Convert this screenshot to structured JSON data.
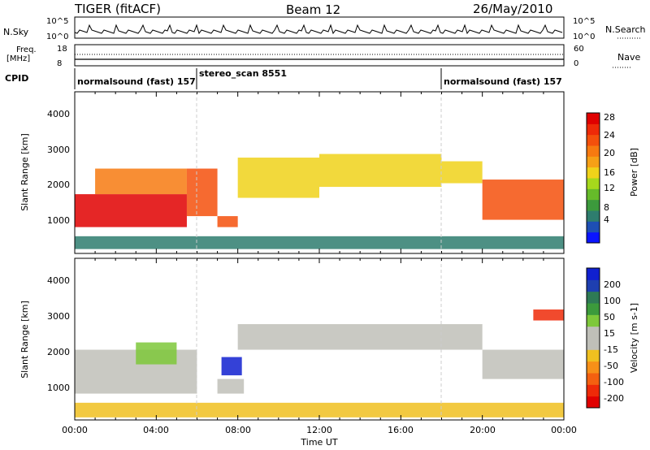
{
  "header": {
    "station": "TIGER (fitACF)",
    "beam": "Beam 12",
    "date": "26/May/2010"
  },
  "noise_panel": {
    "left_label": "N.Sky",
    "right_label": "N.Search",
    "left_ticks": [
      "10^5",
      "10^0"
    ],
    "right_ticks": [
      "10^5",
      "10^0"
    ]
  },
  "freq_panel": {
    "left_label_top": "Freq.",
    "left_label_bottom": "[MHz]",
    "left_ticks": [
      "18",
      "8"
    ],
    "right_label": "Nave",
    "right_ticks": [
      "60",
      "0"
    ]
  },
  "cpid_panel": {
    "label": "CPID",
    "segments": [
      {
        "name": "normalsound (fast) 157",
        "start_hour": 0,
        "end_hour": 6
      },
      {
        "name": "stereo_scan 8551",
        "start_hour": 6,
        "end_hour": 18
      },
      {
        "name": "normalsound (fast) 157",
        "start_hour": 18,
        "end_hour": 24
      }
    ]
  },
  "power_panel": {
    "ylabel": "Slant Range [km]",
    "yticks": [
      "1000",
      "2000",
      "3000",
      "4000"
    ],
    "colorbar_label": "Power [dB]",
    "colorbar_ticks": [
      "4",
      "8",
      "12",
      "16",
      "20",
      "24",
      "28"
    ],
    "colorbar_colors": [
      "#0a14ff",
      "#1e4fb4",
      "#2e7d6e",
      "#3c9a3c",
      "#66bb2a",
      "#a6d81c",
      "#f0d21a",
      "#f6a016",
      "#f77a10",
      "#f4500c",
      "#ee2a08",
      "#e00000"
    ]
  },
  "velocity_panel": {
    "ylabel": "Slant Range [km]",
    "yticks": [
      "1000",
      "2000",
      "3000",
      "4000"
    ],
    "colorbar_label": "Velocity [m s-1]",
    "colorbar_ticks": [
      "200",
      "100",
      "50",
      "15",
      "-15",
      "-50",
      "-100",
      "-200"
    ],
    "colorbar_colors": [
      "#1020d0",
      "#1e3fb0",
      "#2e7a55",
      "#3c9a3c",
      "#7ec83a",
      "#bfbfb8",
      "#bfbfb8",
      "#f0c020",
      "#f79018",
      "#f46010",
      "#ee2a08",
      "#e00000"
    ]
  },
  "x_axis": {
    "label": "Time UT",
    "ticks": [
      "00:00",
      "04:00",
      "08:00",
      "12:00",
      "16:00",
      "20:00",
      "00:00"
    ]
  },
  "chart_data": [
    {
      "type": "heatmap",
      "title": "Power",
      "x": {
        "label": "Time UT",
        "range_hours": [
          0,
          24
        ]
      },
      "y": {
        "label": "Slant Range [km]",
        "range_km": [
          180,
          4600
        ]
      },
      "z": {
        "label": "Power [dB]",
        "range": [
          0,
          32
        ]
      },
      "scatter_regions": [
        {
          "start_hour": 0.0,
          "end_hour": 5.5,
          "lower_km": 900,
          "upper_km": 1800,
          "power_db": 30
        },
        {
          "start_hour": 1.0,
          "end_hour": 5.5,
          "lower_km": 1800,
          "upper_km": 2500,
          "power_db": 22
        },
        {
          "start_hour": 5.5,
          "end_hour": 7.0,
          "lower_km": 1200,
          "upper_km": 2500,
          "power_db": 26
        },
        {
          "start_hour": 7.0,
          "end_hour": 8.0,
          "lower_km": 900,
          "upper_km": 1200,
          "power_db": 26
        },
        {
          "start_hour": 8.0,
          "end_hour": 12.0,
          "lower_km": 1700,
          "upper_km": 2800,
          "power_db": 18
        },
        {
          "start_hour": 12.0,
          "end_hour": 18.0,
          "lower_km": 2000,
          "upper_km": 2900,
          "power_db": 18
        },
        {
          "start_hour": 18.0,
          "end_hour": 20.0,
          "lower_km": 2100,
          "upper_km": 2700,
          "power_db": 18
        },
        {
          "start_hour": 20.0,
          "end_hour": 24.0,
          "lower_km": 1100,
          "upper_km": 2200,
          "power_db": 26
        },
        {
          "start_hour": 0.0,
          "end_hour": 24.0,
          "lower_km": 300,
          "upper_km": 650,
          "power_db": 6
        }
      ]
    },
    {
      "type": "heatmap",
      "title": "Velocity",
      "x": {
        "label": "Time UT",
        "range_hours": [
          0,
          24
        ]
      },
      "y": {
        "label": "Slant Range [km]",
        "range_km": [
          180,
          4600
        ]
      },
      "z": {
        "label": "Velocity [m s-1]",
        "range": [
          -250,
          250
        ]
      },
      "scatter_regions": [
        {
          "start_hour": 0.0,
          "end_hour": 6.0,
          "lower_km": 900,
          "upper_km": 2100,
          "velocity": 0
        },
        {
          "start_hour": 3.0,
          "end_hour": 5.0,
          "lower_km": 1700,
          "upper_km": 2300,
          "velocity": 80
        },
        {
          "start_hour": 7.2,
          "end_hour": 8.2,
          "lower_km": 1400,
          "upper_km": 1900,
          "velocity": 250
        },
        {
          "start_hour": 7.0,
          "end_hour": 8.3,
          "lower_km": 900,
          "upper_km": 1300,
          "velocity": 40
        },
        {
          "start_hour": 8.0,
          "end_hour": 20.0,
          "lower_km": 2100,
          "upper_km": 2800,
          "velocity": 0
        },
        {
          "start_hour": 20.0,
          "end_hour": 24.0,
          "lower_km": 1300,
          "upper_km": 2100,
          "velocity": 0
        },
        {
          "start_hour": 22.5,
          "end_hour": 24.0,
          "lower_km": 2900,
          "upper_km": 3200,
          "velocity": -200
        },
        {
          "start_hour": 0.0,
          "end_hour": 24.0,
          "lower_km": 250,
          "upper_km": 650,
          "velocity": -50
        }
      ]
    }
  ]
}
